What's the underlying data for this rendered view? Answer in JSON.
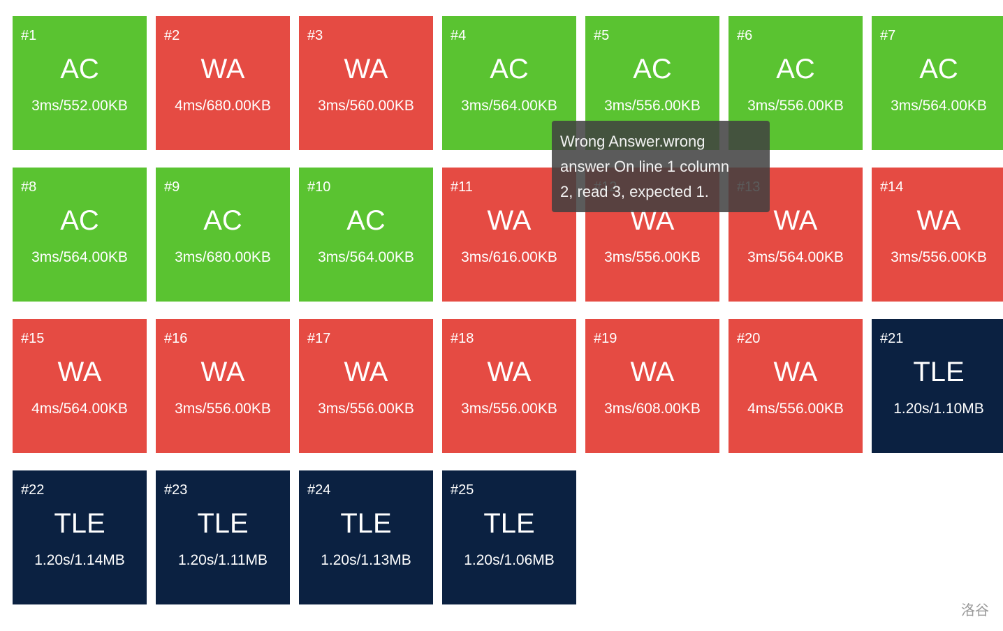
{
  "testcases": [
    {
      "num": "#1",
      "status": "AC",
      "result": "3ms/552.00KB",
      "kind": "ac"
    },
    {
      "num": "#2",
      "status": "WA",
      "result": "4ms/680.00KB",
      "kind": "wa"
    },
    {
      "num": "#3",
      "status": "WA",
      "result": "3ms/560.00KB",
      "kind": "wa"
    },
    {
      "num": "#4",
      "status": "AC",
      "result": "3ms/564.00KB",
      "kind": "ac"
    },
    {
      "num": "#5",
      "status": "AC",
      "result": "3ms/556.00KB",
      "kind": "ac"
    },
    {
      "num": "#6",
      "status": "AC",
      "result": "3ms/556.00KB",
      "kind": "ac"
    },
    {
      "num": "#7",
      "status": "AC",
      "result": "3ms/564.00KB",
      "kind": "ac"
    },
    {
      "num": "#8",
      "status": "AC",
      "result": "3ms/564.00KB",
      "kind": "ac"
    },
    {
      "num": "#9",
      "status": "AC",
      "result": "3ms/680.00KB",
      "kind": "ac"
    },
    {
      "num": "#10",
      "status": "AC",
      "result": "3ms/564.00KB",
      "kind": "ac"
    },
    {
      "num": "#11",
      "status": "WA",
      "result": "3ms/616.00KB",
      "kind": "wa"
    },
    {
      "num": "#12",
      "status": "WA",
      "result": "3ms/556.00KB",
      "kind": "wa"
    },
    {
      "num": "#13",
      "status": "WA",
      "result": "3ms/564.00KB",
      "kind": "wa"
    },
    {
      "num": "#14",
      "status": "WA",
      "result": "3ms/556.00KB",
      "kind": "wa"
    },
    {
      "num": "#15",
      "status": "WA",
      "result": "4ms/564.00KB",
      "kind": "wa"
    },
    {
      "num": "#16",
      "status": "WA",
      "result": "3ms/556.00KB",
      "kind": "wa"
    },
    {
      "num": "#17",
      "status": "WA",
      "result": "3ms/556.00KB",
      "kind": "wa"
    },
    {
      "num": "#18",
      "status": "WA",
      "result": "3ms/556.00KB",
      "kind": "wa"
    },
    {
      "num": "#19",
      "status": "WA",
      "result": "3ms/608.00KB",
      "kind": "wa"
    },
    {
      "num": "#20",
      "status": "WA",
      "result": "4ms/556.00KB",
      "kind": "wa"
    },
    {
      "num": "#21",
      "status": "TLE",
      "result": "1.20s/1.10MB",
      "kind": "tle"
    },
    {
      "num": "#22",
      "status": "TLE",
      "result": "1.20s/1.14MB",
      "kind": "tle"
    },
    {
      "num": "#23",
      "status": "TLE",
      "result": "1.20s/1.11MB",
      "kind": "tle"
    },
    {
      "num": "#24",
      "status": "TLE",
      "result": "1.20s/1.13MB",
      "kind": "tle"
    },
    {
      "num": "#25",
      "status": "TLE",
      "result": "1.20s/1.06MB",
      "kind": "tle"
    }
  ],
  "tooltip": {
    "line1": "Wrong Answer.wrong",
    "line2": "answer On line 1 column",
    "line3": "2, read 3, expected 1."
  },
  "watermark": "洛谷",
  "colors": {
    "ac": "#5ac331",
    "wa": "#e54b43",
    "tle": "#0b2141"
  }
}
